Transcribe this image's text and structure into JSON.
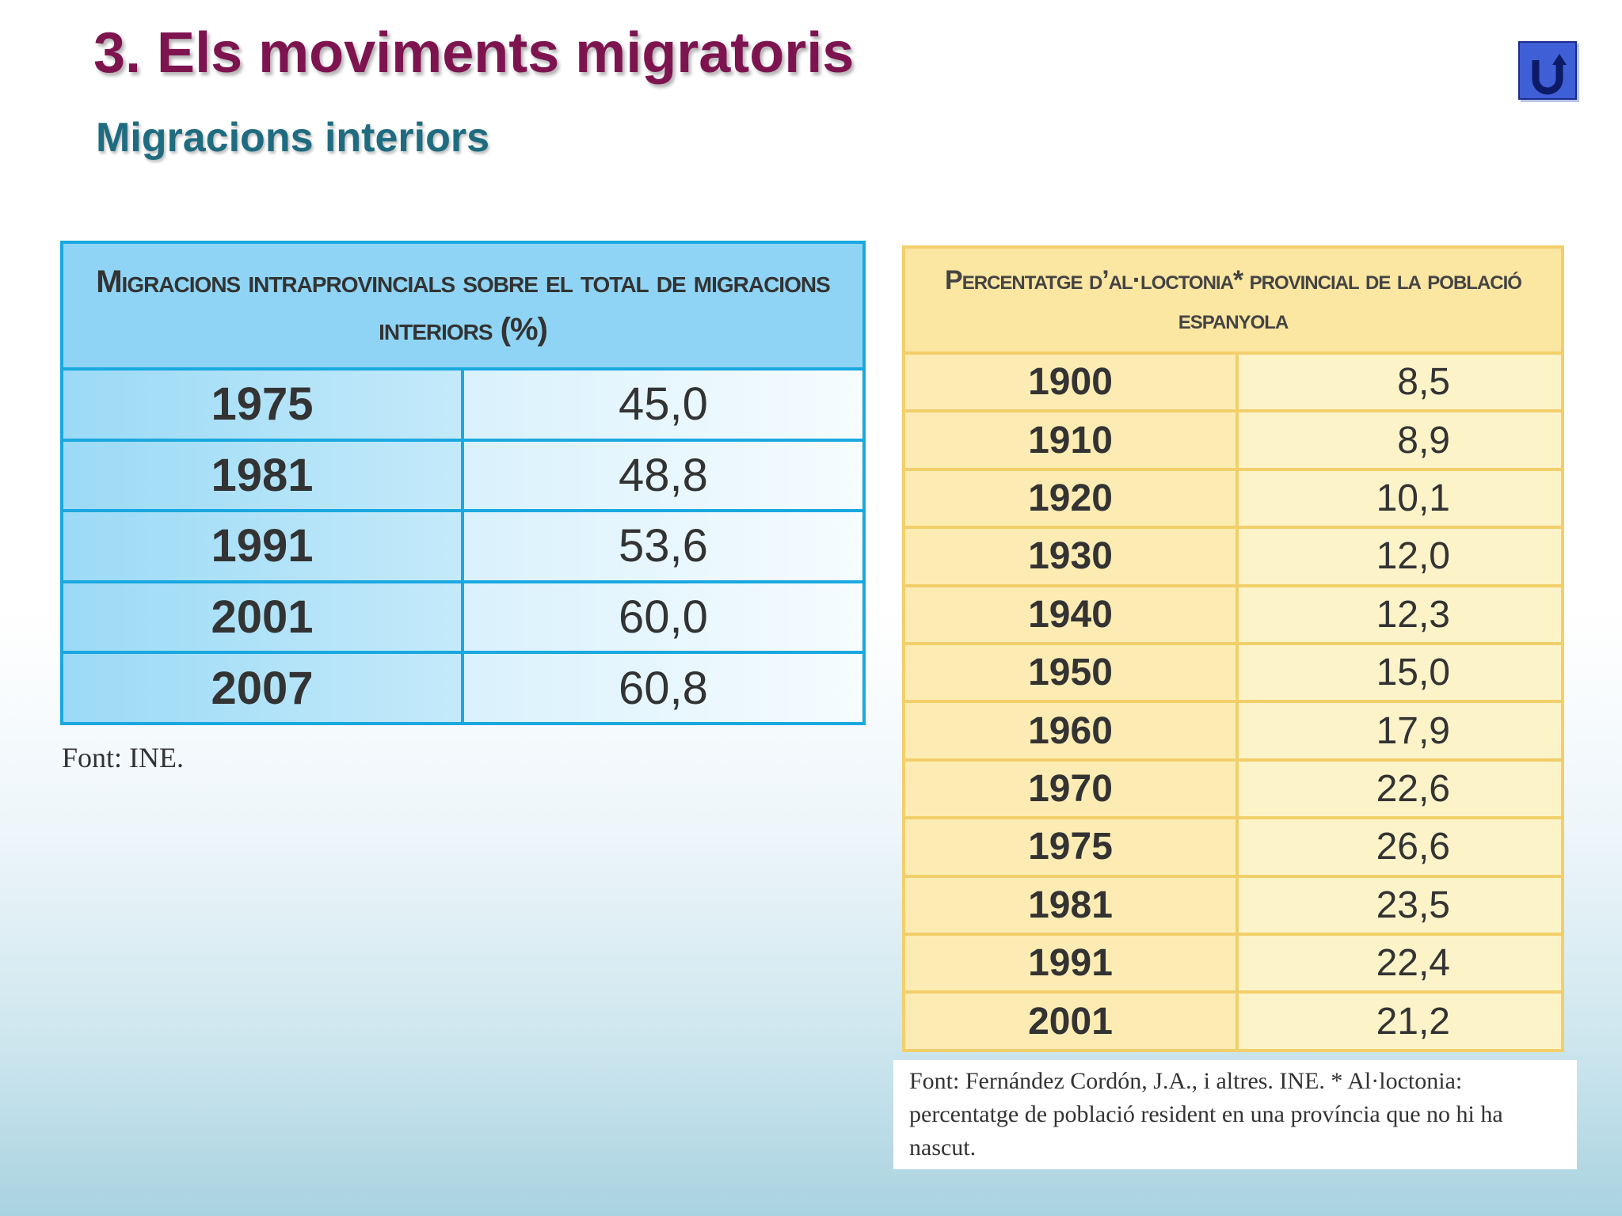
{
  "header": {
    "title": "3. Els moviments migratoris",
    "subtitle": "Migracions interiors"
  },
  "table1": {
    "title": "Migracions intraprovincials sobre el total de migracions interiors (%)",
    "rows": [
      [
        "1975",
        "45,0"
      ],
      [
        "1981",
        "48,8"
      ],
      [
        "1991",
        "53,6"
      ],
      [
        "2001",
        "60,0"
      ],
      [
        "2007",
        "60,8"
      ]
    ],
    "source": "Font: INE."
  },
  "table2": {
    "title": "Percentatge d’al·loctonia* provincial de la població espanyola",
    "rows": [
      [
        "1900",
        "8,5"
      ],
      [
        "1910",
        "8,9"
      ],
      [
        "1920",
        "10,1"
      ],
      [
        "1930",
        "12,0"
      ],
      [
        "1940",
        "12,3"
      ],
      [
        "1950",
        "15,0"
      ],
      [
        "1960",
        "17,9"
      ],
      [
        "1970",
        "22,6"
      ],
      [
        "1975",
        "26,6"
      ],
      [
        "1981",
        "23,5"
      ],
      [
        "1991",
        "22,4"
      ],
      [
        "2001",
        "21,2"
      ]
    ],
    "source": "Font: Fernández Cordón, J.A., i altres. INE. * Al·loctonia: percentatge de població resident en una província que no hi ha nascut."
  }
}
